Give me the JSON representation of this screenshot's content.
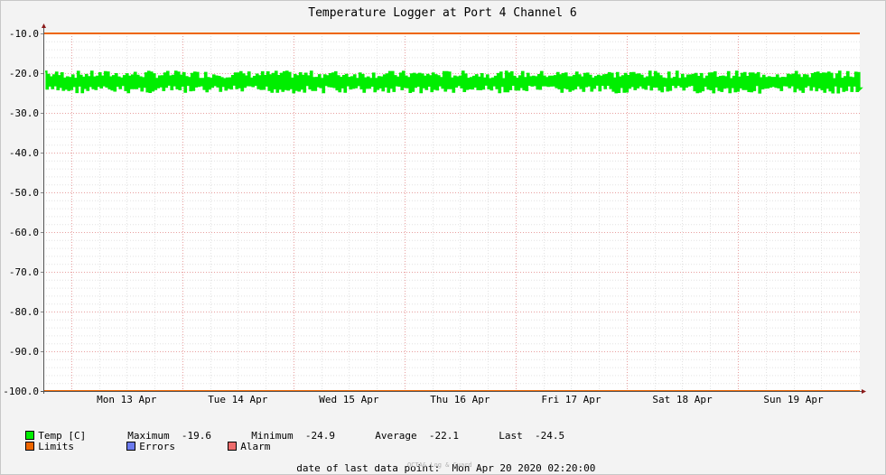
{
  "chart_data": {
    "type": "line",
    "title": "Temperature Logger at Port 4 Channel 6",
    "ylim": [
      -100,
      -10
    ],
    "y_ticks": [
      "-10.0",
      "-20.0",
      "-30.0",
      "-40.0",
      "-50.0",
      "-60.0",
      "-70.0",
      "-80.0",
      "-90.0",
      "-100.0"
    ],
    "y_tick_values": [
      -10,
      -20,
      -30,
      -40,
      -50,
      -60,
      -70,
      -80,
      -90,
      -100
    ],
    "x_range": [
      "2020-04-12 18:00",
      "2020-04-20 02:20"
    ],
    "x_ticks": [
      {
        "label": "Mon 13 Apr",
        "date": "2020-04-13"
      },
      {
        "label": "Tue 14 Apr",
        "date": "2020-04-14"
      },
      {
        "label": "Wed 15 Apr",
        "date": "2020-04-15"
      },
      {
        "label": "Thu 16 Apr",
        "date": "2020-04-16"
      },
      {
        "label": "Fri 17 Apr",
        "date": "2020-04-17"
      },
      {
        "label": "Sat 18 Apr",
        "date": "2020-04-18"
      },
      {
        "label": "Sun 19 Apr",
        "date": "2020-04-19"
      }
    ],
    "grid": true,
    "series": [
      {
        "name": "Temp [C]",
        "color": "#00ee00",
        "kind": "oscillating",
        "min": -24.9,
        "max": -19.6,
        "average": -22.1,
        "last": -24.5
      },
      {
        "name": "Limits",
        "color": "#ee6600",
        "kind": "horizontal",
        "values": [
          -10,
          -100
        ]
      },
      {
        "name": "Errors",
        "color": "#6c7bee"
      },
      {
        "name": "Alarm",
        "color": "#ee6c6c"
      }
    ]
  },
  "legend": {
    "temp_label": "Temp [C]",
    "maximum_label": "Maximum",
    "maximum_value": "-19.6",
    "minimum_label": "Minimum",
    "minimum_value": "-24.9",
    "average_label": "Average",
    "average_value": "-22.1",
    "last_label": "Last",
    "last_value": "-24.5",
    "limits_label": "Limits",
    "errors_label": "Errors",
    "alarm_label": "Alarm"
  },
  "footer": {
    "last_point_label": "date of last data point:",
    "last_point_value": "Mon Apr 20 2020 02:20:00",
    "credit": "OCTA& Log & Guard"
  }
}
